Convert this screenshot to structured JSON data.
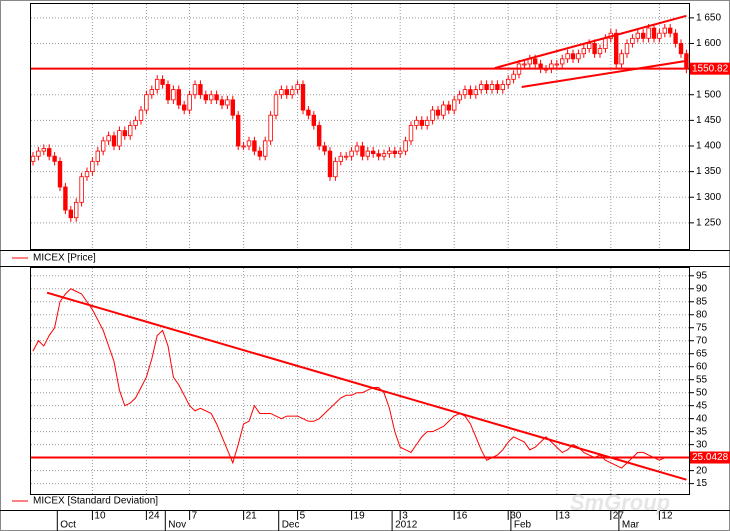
{
  "chart_data": [
    {
      "type": "candlestick",
      "legend": "MICEX [Price]",
      "color": "#ff0000",
      "open": [
        1370,
        1380,
        1390,
        1395,
        1380,
        1370,
        1320,
        1275,
        1260,
        1290,
        1340,
        1350,
        1370,
        1390,
        1410,
        1420,
        1400,
        1430,
        1420,
        1440,
        1450,
        1470,
        1500,
        1510,
        1530,
        1520,
        1490,
        1510,
        1480,
        1470,
        1500,
        1520,
        1500,
        1490,
        1500,
        1490,
        1480,
        1490,
        1460,
        1400,
        1400,
        1410,
        1390,
        1380,
        1410,
        1460,
        1500,
        1510,
        1500,
        1510,
        1520,
        1470,
        1460,
        1440,
        1400,
        1390,
        1340,
        1370,
        1380,
        1380,
        1390,
        1400,
        1380,
        1390,
        1385,
        1380,
        1385,
        1390,
        1385,
        1390,
        1410,
        1440,
        1450,
        1440,
        1450,
        1470,
        1460,
        1480,
        1470,
        1490,
        1500,
        1510,
        1500,
        1510,
        1520,
        1510,
        1520,
        1510,
        1520,
        1530,
        1540,
        1560,
        1560,
        1570,
        1560,
        1550,
        1550,
        1560,
        1560,
        1570,
        1580,
        1570,
        1580,
        1590,
        1600,
        1580,
        1590,
        1610,
        1620,
        1560,
        1580,
        1600,
        1610,
        1620,
        1610,
        1630,
        1610,
        1620,
        1630,
        1620,
        1600,
        1580
      ],
      "high": [
        1388,
        1398,
        1403,
        1403,
        1388,
        1378,
        1328,
        1283,
        1298,
        1348,
        1358,
        1378,
        1398,
        1418,
        1428,
        1428,
        1438,
        1438,
        1448,
        1458,
        1478,
        1508,
        1518,
        1538,
        1538,
        1528,
        1518,
        1518,
        1488,
        1508,
        1528,
        1528,
        1508,
        1508,
        1508,
        1498,
        1498,
        1498,
        1468,
        1408,
        1418,
        1418,
        1398,
        1418,
        1468,
        1508,
        1518,
        1518,
        1518,
        1528,
        1528,
        1478,
        1468,
        1448,
        1408,
        1398,
        1378,
        1388,
        1388,
        1398,
        1408,
        1408,
        1398,
        1398,
        1393,
        1393,
        1398,
        1398,
        1398,
        1418,
        1448,
        1458,
        1458,
        1458,
        1478,
        1478,
        1488,
        1488,
        1498,
        1508,
        1518,
        1518,
        1518,
        1528,
        1528,
        1528,
        1528,
        1528,
        1538,
        1548,
        1568,
        1568,
        1578,
        1578,
        1568,
        1558,
        1568,
        1568,
        1578,
        1588,
        1588,
        1588,
        1598,
        1608,
        1608,
        1598,
        1618,
        1628,
        1628,
        1588,
        1608,
        1618,
        1628,
        1628,
        1638,
        1638,
        1628,
        1638,
        1638,
        1628,
        1608,
        1588
      ],
      "low": [
        1362,
        1372,
        1382,
        1372,
        1362,
        1312,
        1267,
        1252,
        1252,
        1282,
        1332,
        1342,
        1362,
        1382,
        1402,
        1392,
        1392,
        1412,
        1412,
        1432,
        1442,
        1462,
        1492,
        1502,
        1512,
        1482,
        1482,
        1472,
        1462,
        1462,
        1492,
        1492,
        1482,
        1482,
        1482,
        1472,
        1472,
        1452,
        1392,
        1392,
        1392,
        1382,
        1372,
        1372,
        1402,
        1452,
        1492,
        1492,
        1492,
        1502,
        1462,
        1452,
        1432,
        1392,
        1382,
        1332,
        1332,
        1362,
        1372,
        1372,
        1382,
        1372,
        1372,
        1377,
        1372,
        1372,
        1377,
        1377,
        1377,
        1382,
        1402,
        1432,
        1432,
        1432,
        1442,
        1452,
        1452,
        1462,
        1462,
        1482,
        1492,
        1492,
        1492,
        1502,
        1502,
        1502,
        1502,
        1502,
        1512,
        1522,
        1532,
        1552,
        1552,
        1552,
        1542,
        1542,
        1542,
        1552,
        1552,
        1562,
        1562,
        1562,
        1572,
        1582,
        1572,
        1572,
        1582,
        1602,
        1552,
        1552,
        1572,
        1592,
        1602,
        1602,
        1602,
        1602,
        1602,
        1612,
        1612,
        1592,
        1572,
        1542
      ],
      "close": [
        1380,
        1390,
        1395,
        1380,
        1370,
        1320,
        1275,
        1260,
        1290,
        1340,
        1350,
        1370,
        1390,
        1410,
        1420,
        1400,
        1430,
        1420,
        1440,
        1450,
        1470,
        1500,
        1510,
        1530,
        1520,
        1490,
        1510,
        1480,
        1470,
        1500,
        1520,
        1500,
        1490,
        1500,
        1490,
        1480,
        1490,
        1460,
        1400,
        1400,
        1410,
        1390,
        1380,
        1410,
        1460,
        1500,
        1510,
        1500,
        1510,
        1520,
        1470,
        1460,
        1440,
        1400,
        1390,
        1340,
        1370,
        1380,
        1380,
        1390,
        1400,
        1380,
        1390,
        1385,
        1380,
        1385,
        1390,
        1385,
        1390,
        1410,
        1440,
        1450,
        1440,
        1450,
        1470,
        1460,
        1480,
        1470,
        1490,
        1500,
        1510,
        1500,
        1510,
        1520,
        1510,
        1520,
        1510,
        1520,
        1530,
        1540,
        1560,
        1560,
        1570,
        1560,
        1550,
        1550,
        1560,
        1560,
        1570,
        1580,
        1570,
        1580,
        1590,
        1600,
        1580,
        1590,
        1610,
        1620,
        1560,
        1580,
        1600,
        1610,
        1620,
        1610,
        1630,
        1610,
        1620,
        1630,
        1620,
        1600,
        1580,
        1550.82
      ],
      "ylim": [
        1199,
        1677
      ],
      "yticks": [
        {
          "value": 1250,
          "label": "1 250"
        },
        {
          "value": 1300,
          "label": "1 300"
        },
        {
          "value": 1350,
          "label": "1 350"
        },
        {
          "value": 1400,
          "label": "1 400"
        },
        {
          "value": 1450,
          "label": "1 450"
        },
        {
          "value": 1500,
          "label": "1 500"
        },
        {
          "value": 1550,
          "label": "1 550"
        },
        {
          "value": 1600,
          "label": "1 600"
        },
        {
          "value": 1650,
          "label": "1 650"
        }
      ],
      "trendlines": [
        {
          "x": [
            85.5,
            121
          ],
          "y": [
            1552,
            1654
          ]
        },
        {
          "x": [
            90.5,
            121
          ],
          "y": [
            1515,
            1566
          ]
        }
      ],
      "grid": true
    },
    {
      "type": "line",
      "series": [
        {
          "name": "MICEX [Standard Deviation]",
          "color": "#ff0000",
          "values": [
            66,
            70,
            68,
            72,
            75,
            85,
            88,
            90,
            89,
            88,
            85,
            82,
            78,
            74,
            68,
            62,
            51,
            45,
            46,
            48,
            52,
            56,
            63,
            72,
            74,
            68,
            56,
            53,
            49,
            45,
            43,
            44,
            43,
            42,
            38,
            33,
            28,
            23,
            30,
            38,
            39,
            45,
            42,
            42,
            42,
            41,
            40,
            41,
            41,
            41,
            40,
            39,
            39,
            40,
            42,
            44,
            46,
            48,
            49,
            49,
            50,
            50,
            51,
            52,
            52,
            50,
            44,
            35,
            29,
            28,
            27,
            30,
            33,
            35,
            35,
            36,
            37,
            39,
            41,
            42,
            41,
            38,
            33,
            28,
            24,
            25,
            26,
            28,
            31,
            33,
            32,
            31,
            28,
            29,
            31,
            33,
            31,
            29,
            27,
            28,
            30,
            29,
            27,
            26,
            25,
            26,
            24,
            23,
            22,
            21,
            23,
            25,
            27,
            27,
            26,
            25,
            24,
            25,
            25,
            25,
            25,
            25.0428
          ]
        }
      ],
      "categories": [
        null,
        null,
        null,
        null,
        null,
        null,
        null,
        null,
        null,
        null,
        null,
        "10",
        null,
        null,
        null,
        null,
        null,
        null,
        null,
        null,
        null,
        "24",
        null,
        null,
        null,
        null,
        null,
        null,
        null,
        "7",
        null,
        null,
        null,
        null,
        null,
        null,
        null,
        null,
        null,
        "21",
        null,
        null,
        null,
        null,
        null,
        null,
        null,
        null,
        null,
        "5",
        null,
        null,
        null,
        null,
        null,
        null,
        null,
        null,
        null,
        "19",
        null,
        null,
        null,
        null,
        null,
        null,
        null,
        null,
        "3",
        null,
        null,
        null,
        null,
        null,
        null,
        null,
        null,
        null,
        "16",
        null,
        null,
        null,
        null,
        null,
        null,
        null,
        null,
        null,
        "30",
        null,
        null,
        null,
        null,
        null,
        null,
        null,
        null,
        "13",
        null,
        null,
        null,
        null,
        null,
        null,
        null,
        null,
        null,
        "27",
        null,
        null,
        null,
        null,
        null,
        null,
        null,
        null,
        "12",
        null,
        null,
        null,
        null,
        null
      ],
      "months": [
        {
          "value": 5,
          "label": "Oct"
        },
        {
          "value": 25,
          "label": "Nov"
        },
        {
          "value": 46,
          "label": "Dec"
        },
        {
          "value": 67,
          "label": "2012"
        },
        {
          "value": 89,
          "label": "Feb"
        },
        {
          "value": 109,
          "label": "Mar"
        }
      ],
      "ylim": [
        11,
        98
      ],
      "yticks": [
        15,
        20,
        25,
        30,
        35,
        40,
        45,
        50,
        55,
        60,
        65,
        70,
        75,
        80,
        85,
        90,
        95
      ],
      "trendlines": [
        {
          "x": [
            2.6,
            121
          ],
          "y": [
            88.5,
            16.5
          ]
        }
      ],
      "grid": true,
      "watermark": "SmGroup"
    }
  ]
}
